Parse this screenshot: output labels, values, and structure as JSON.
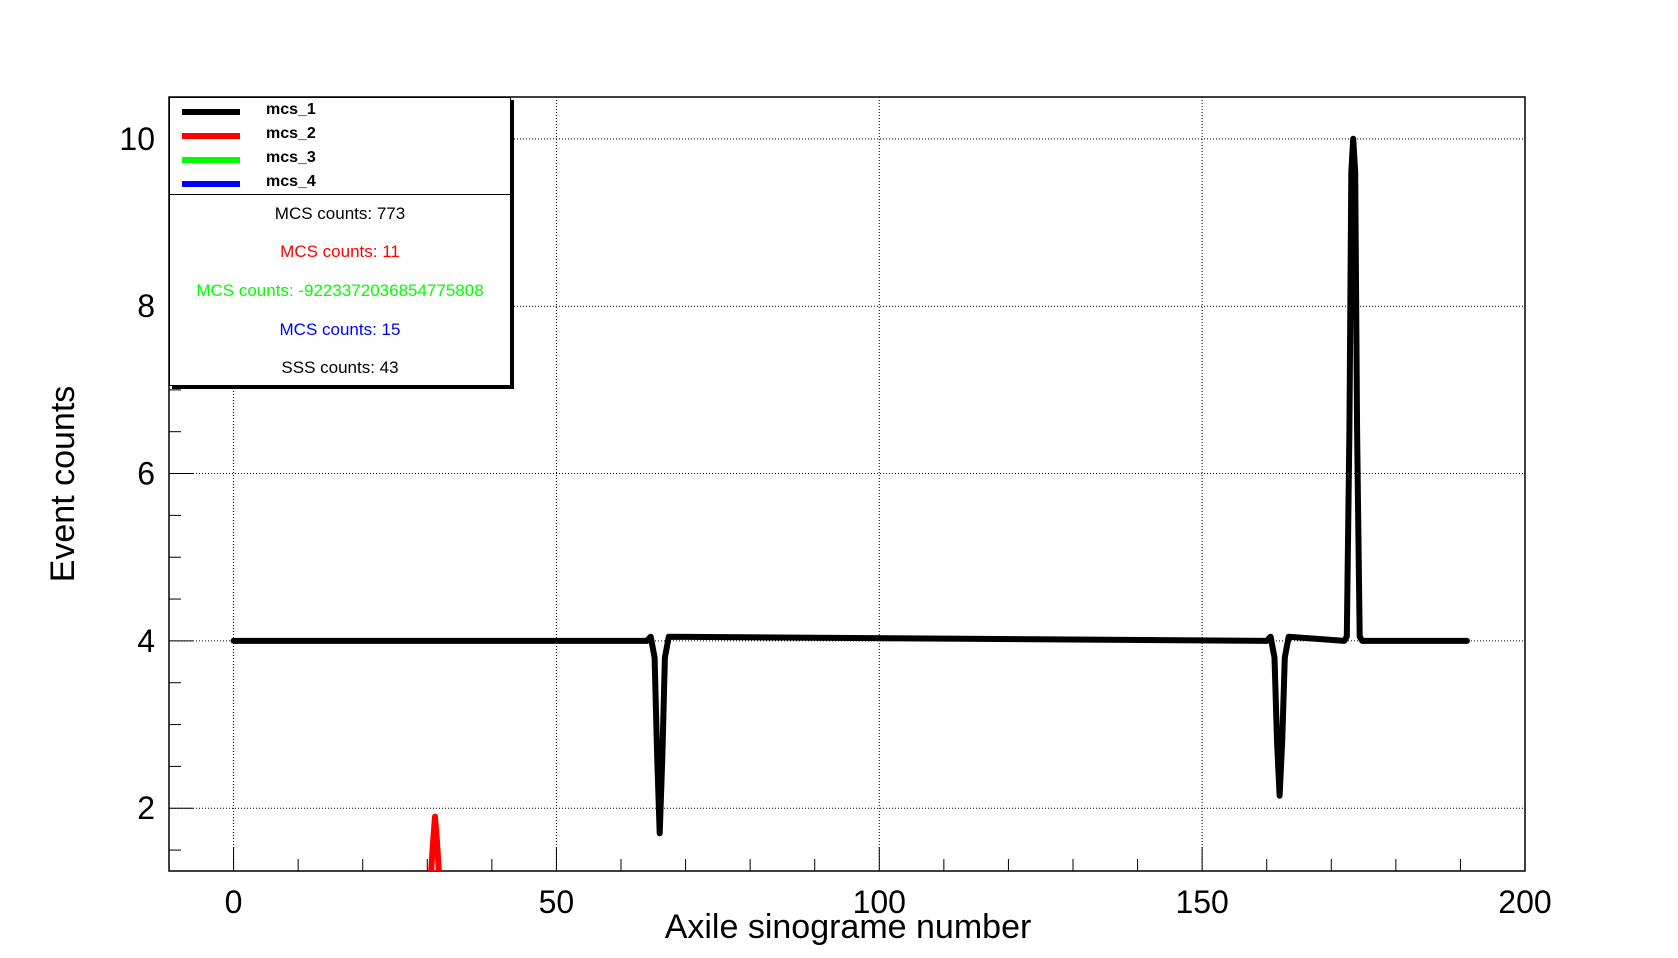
{
  "chart_data": {
    "type": "line",
    "xlabel": "Axile sinograme number",
    "ylabel": "Event counts",
    "xlim": [
      -10,
      200
    ],
    "ylim": [
      1.25,
      10.5
    ],
    "x_ticks": [
      0,
      50,
      100,
      150,
      200
    ],
    "y_ticks": [
      2,
      4,
      6,
      8,
      10
    ],
    "grid": true,
    "legend_position": "top-left",
    "series": [
      {
        "name": "mcs_1",
        "color": "#000000",
        "x": [
          0,
          64,
          64.6,
          65.2,
          65.6,
          66,
          66.4,
          66.8,
          67.4,
          160,
          160.6,
          161.2,
          161.6,
          162,
          162.4,
          162.8,
          163.4,
          172,
          172.4,
          172.8,
          173.1,
          173.4,
          173.7,
          174,
          174.4,
          174.8,
          175.2,
          191
        ],
        "y": [
          4,
          4,
          4.05,
          3.8,
          2.6,
          1.7,
          2.6,
          3.8,
          4.05,
          4,
          4.05,
          3.8,
          2.8,
          2.15,
          2.8,
          3.8,
          4.05,
          4,
          4.05,
          6.5,
          9.6,
          10,
          9.6,
          6.5,
          4.05,
          4,
          4,
          4
        ]
      },
      {
        "name": "mcs_2",
        "color": "#ff0000",
        "x": [
          30.6,
          30.9,
          31.2,
          31.5,
          31.8
        ],
        "y": [
          1.25,
          1.6,
          1.9,
          1.6,
          1.25
        ]
      },
      {
        "name": "mcs_3",
        "color": "#00ff00",
        "x": [],
        "y": []
      },
      {
        "name": "mcs_4",
        "color": "#0000ff",
        "x": [],
        "y": []
      }
    ],
    "legend": {
      "counts": [
        {
          "text": "MCS counts: 773",
          "color": "#000000"
        },
        {
          "text": "MCS counts: 11",
          "color": "#ff0000"
        },
        {
          "text": "MCS counts: -9223372036854775808",
          "color": "#00ff00"
        },
        {
          "text": "MCS counts: 15",
          "color": "#0000ff"
        },
        {
          "text": "SSS counts: 43",
          "color": "#000000"
        }
      ]
    }
  }
}
